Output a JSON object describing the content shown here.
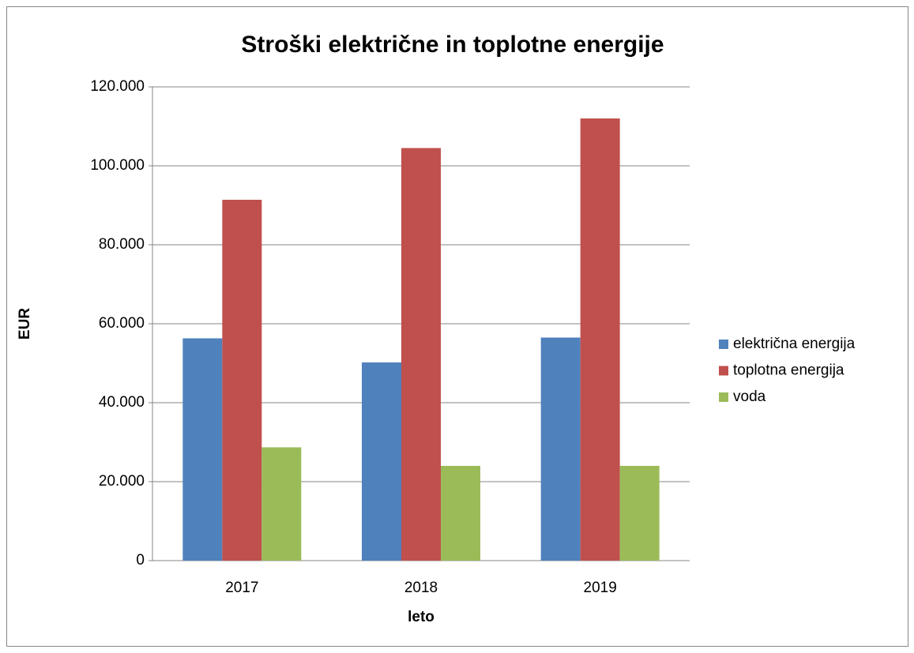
{
  "chart_data": {
    "type": "bar",
    "title": "Stroški električne in toplotne energije",
    "xlabel": "leto",
    "ylabel": "EUR",
    "categories": [
      "2017",
      "2018",
      "2019"
    ],
    "series": [
      {
        "name": "električna energija",
        "color": "#4f81bd",
        "values": [
          56300,
          50200,
          56500
        ]
      },
      {
        "name": "toplotna energija",
        "color": "#c0504d",
        "values": [
          91400,
          104500,
          112000
        ]
      },
      {
        "name": "voda",
        "color": "#9bbb59",
        "values": [
          28700,
          24000,
          24000
        ]
      }
    ],
    "ylim": [
      0,
      120000
    ],
    "yticks": [
      0,
      {
        "value": 20000,
        "label": "20.000"
      },
      {
        "value": 40000,
        "label": "40.000"
      },
      {
        "value": 60000,
        "label": "60.000"
      },
      {
        "value": 80000,
        "label": "80.000"
      },
      {
        "value": 100000,
        "label": "100.000"
      },
      {
        "value": 120000,
        "label": "120.000"
      }
    ],
    "grid": true,
    "legend": "right"
  }
}
